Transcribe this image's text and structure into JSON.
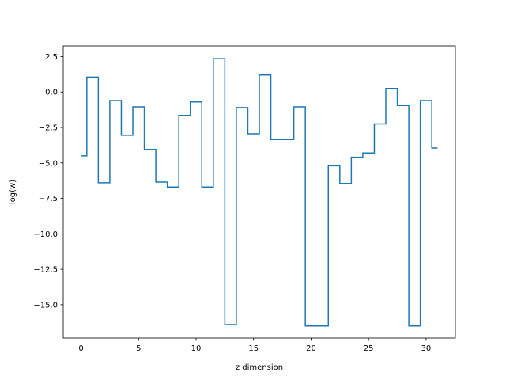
{
  "chart_data": {
    "type": "line",
    "drawstyle": "steps-mid",
    "title": "",
    "xlabel": "z dimension",
    "ylabel": "log(w)",
    "xlim": [
      -1.55,
      32.55
    ],
    "ylim": [
      -17.35,
      3.25
    ],
    "xticks": [
      0,
      5,
      10,
      15,
      20,
      25,
      30
    ],
    "yticks": [
      2.5,
      0.0,
      -2.5,
      -5.0,
      -7.5,
      -10.0,
      -12.5,
      -15.0
    ],
    "ytick_labels": [
      "2.5",
      "0.0",
      "−2.5",
      "−5.0",
      "−7.5",
      "−10.0",
      "−12.5",
      "−15.0"
    ],
    "grid": false,
    "legend": "none",
    "series": [
      {
        "color": "#1f77b4",
        "x": [
          0,
          1,
          2,
          3,
          4,
          5,
          6,
          7,
          8,
          9,
          10,
          11,
          12,
          13,
          14,
          15,
          16,
          17,
          18,
          19,
          20,
          21,
          22,
          23,
          24,
          25,
          26,
          27,
          28,
          29,
          30,
          31
        ],
        "values": [
          -4.5,
          1.05,
          -6.4,
          -0.6,
          -3.05,
          -1.05,
          -4.05,
          -6.35,
          -6.7,
          -1.65,
          -0.7,
          -6.7,
          2.35,
          -16.4,
          -1.1,
          -2.95,
          1.2,
          -3.35,
          -3.35,
          -1.05,
          -16.5,
          -16.5,
          -5.2,
          -6.45,
          -4.6,
          -4.3,
          -2.25,
          0.25,
          -0.95,
          -16.5,
          -0.6,
          -3.95
        ]
      }
    ]
  }
}
